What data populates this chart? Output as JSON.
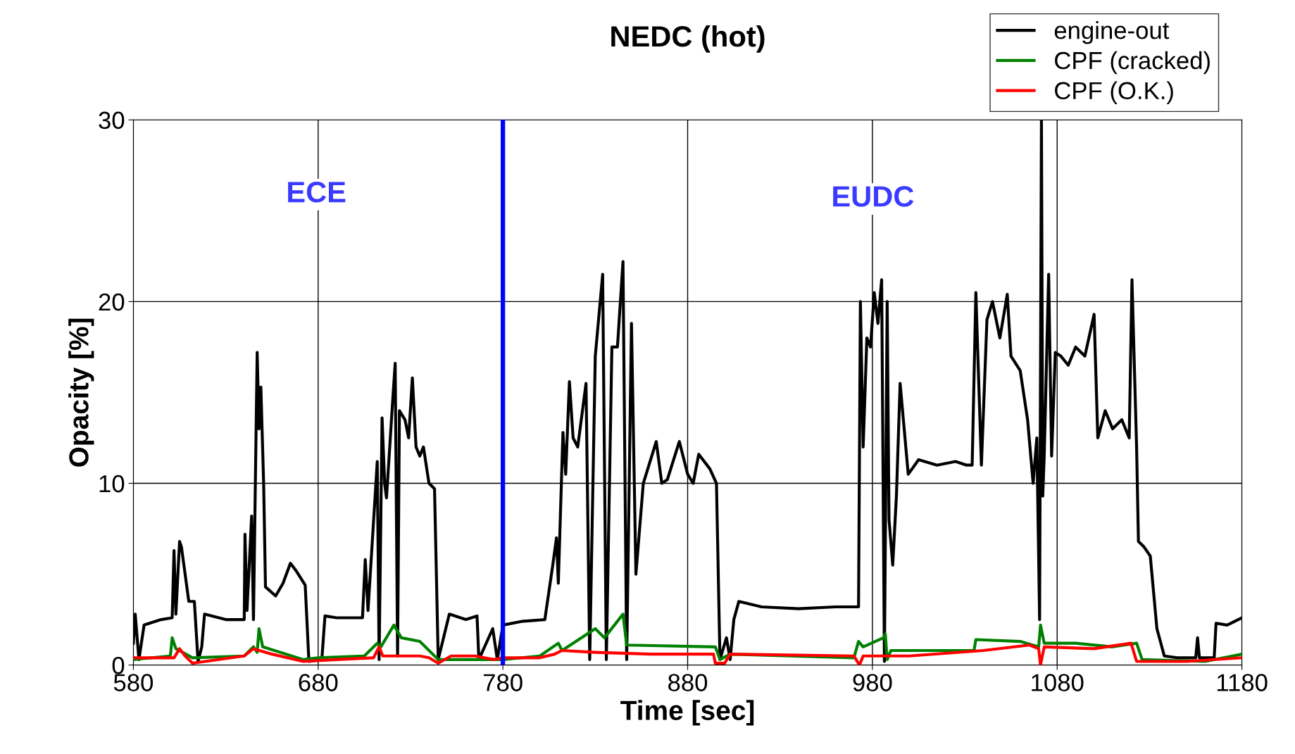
{
  "chart_data": {
    "type": "line",
    "title": "NEDC (hot)",
    "xlabel": "Time [sec]",
    "ylabel": "Opacity [%]",
    "xlim": [
      580,
      1180
    ],
    "xticks": [
      580,
      680,
      780,
      880,
      980,
      1080,
      1180
    ],
    "ylim": [
      0,
      30
    ],
    "yticks": [
      0,
      10,
      20,
      30
    ],
    "grid": true,
    "legend": "top right",
    "marker": "none",
    "line_style": "solid",
    "ref_lines": [
      {
        "axis": "x",
        "value": 780,
        "label": null,
        "color": "#0000ff"
      }
    ],
    "annotations": [
      "ECE",
      "EUDC"
    ],
    "series": [
      {
        "name": "engine-out",
        "color": "#000000",
        "x": [
          580,
          581,
          583,
          585.8,
          595,
          601,
          602,
          603,
          605,
          606,
          610,
          613,
          615,
          617,
          618.5,
          630,
          640,
          640.4,
          641.5,
          644,
          645,
          647,
          648,
          649,
          650.5,
          651.5,
          657,
          661,
          665,
          668,
          673,
          675,
          682,
          683.7,
          690,
          700,
          704,
          705.5,
          707,
          712,
          713,
          714.6,
          716,
          717,
          720,
          721.7,
          723,
          724,
          727,
          729,
          731,
          733,
          735,
          737,
          740,
          743,
          745,
          751,
          760,
          766,
          767,
          774.5,
          777,
          780,
          790,
          802.7,
          807,
          809,
          810,
          812.5,
          814,
          816,
          818,
          820.5,
          825,
          827,
          830,
          834,
          836,
          839,
          842,
          845,
          847,
          849.6,
          852,
          856,
          863,
          866,
          869,
          875.5,
          880,
          883,
          886,
          892,
          895.6,
          897.5,
          901,
          903,
          905,
          907.7,
          920,
          940,
          960,
          972.5,
          973.5,
          975,
          977,
          979,
          981,
          983,
          985,
          986.5,
          988,
          989,
          991,
          993,
          995,
          999.4,
          1005,
          1015,
          1025,
          1031,
          1034,
          1036,
          1039,
          1042,
          1045,
          1049,
          1053,
          1055,
          1060,
          1064,
          1067,
          1069,
          1070.5,
          1071.5,
          1072.2,
          1073,
          1075.4,
          1077,
          1079,
          1082,
          1086,
          1090,
          1095,
          1100,
          1102,
          1106,
          1110,
          1115,
          1119,
          1120.5,
          1123,
          1124,
          1127,
          1130.4,
          1134,
          1138,
          1145,
          1155,
          1156,
          1157,
          1165,
          1166,
          1172,
          1180
        ],
        "values": [
          1.2,
          2.8,
          0.3,
          2.2,
          2.5,
          2.6,
          6.3,
          2.8,
          6.8,
          6.5,
          3.5,
          3.5,
          0.2,
          1.0,
          2.8,
          2.5,
          2.5,
          7.2,
          3.0,
          8.2,
          2.5,
          17.2,
          13.0,
          15.3,
          10.0,
          4.3,
          3.8,
          4.5,
          5.6,
          5.2,
          4.4,
          0.2,
          0.3,
          2.7,
          2.6,
          2.6,
          2.6,
          5.8,
          3.0,
          11.2,
          0.3,
          13.6,
          10.0,
          9.2,
          14.0,
          16.6,
          0.5,
          14.0,
          13.5,
          12.5,
          15.8,
          12.0,
          11.5,
          12.0,
          10.0,
          9.7,
          0.3,
          2.8,
          2.5,
          2.7,
          0.3,
          2.0,
          0.3,
          2.2,
          2.4,
          2.5,
          5.5,
          7.0,
          4.5,
          12.8,
          10.5,
          15.6,
          12.5,
          12.0,
          15.5,
          0.3,
          17.0,
          21.5,
          0.3,
          17.5,
          17.5,
          22.2,
          0.3,
          18.8,
          5.0,
          10.0,
          12.3,
          10.0,
          10.2,
          12.3,
          10.5,
          10.0,
          11.6,
          10.8,
          10.0,
          0.3,
          1.5,
          0.3,
          2.5,
          3.5,
          3.2,
          3.1,
          3.2,
          3.2,
          20.0,
          12.0,
          18.0,
          17.5,
          20.5,
          18.8,
          21.2,
          0.2,
          20.0,
          8.0,
          5.5,
          9.3,
          15.5,
          10.5,
          11.3,
          11.0,
          11.2,
          11.0,
          11.0,
          20.5,
          11.0,
          19.0,
          20.0,
          18.0,
          20.4,
          17.0,
          16.2,
          13.5,
          10.0,
          12.5,
          2.5,
          30.0,
          9.3,
          11.5,
          21.5,
          11.5,
          17.2,
          17.0,
          16.5,
          17.5,
          17.0,
          19.3,
          12.5,
          14.0,
          13.0,
          13.5,
          12.5,
          21.2,
          12.0,
          6.8,
          6.5,
          6.0,
          2.0,
          0.5,
          0.4,
          0.4,
          1.5,
          0.4,
          0.4,
          2.3,
          2.2,
          2.6
        ]
      },
      {
        "name": "CPF (cracked)",
        "color": "#008000",
        "x": [
          580,
          600,
          601,
          603,
          612,
          640,
          645,
          647,
          648,
          650,
          672,
          680,
          705,
          712,
          714,
          721,
          725,
          735,
          745,
          780,
          800,
          810,
          812,
          830,
          835,
          845,
          847,
          895,
          897.5,
          903,
          970,
          972.5,
          975,
          986,
          987,
          988,
          990,
          1035,
          1036,
          1060,
          1070,
          1071,
          1073,
          1090,
          1110,
          1123,
          1126,
          1160,
          1180
        ],
        "values": [
          0.3,
          0.5,
          1.5,
          0.9,
          0.4,
          0.5,
          1.0,
          0.7,
          2.0,
          1.0,
          0.3,
          0.4,
          0.5,
          1.2,
          1.0,
          2.2,
          1.5,
          1.3,
          0.3,
          0.3,
          0.5,
          1.2,
          0.8,
          2.0,
          1.5,
          2.8,
          1.1,
          1.0,
          0.3,
          0.6,
          0.4,
          1.3,
          1.0,
          1.5,
          1.7,
          0.3,
          0.8,
          0.8,
          1.4,
          1.3,
          1.0,
          2.2,
          1.2,
          1.2,
          1.0,
          1.2,
          0.3,
          0.2,
          0.6
        ]
      },
      {
        "name": "CPF (O.K.)",
        "color": "#ff0000",
        "x": [
          580,
          602,
          605,
          608,
          612,
          640,
          645,
          655,
          672,
          690,
          710,
          713,
          715,
          735,
          740,
          745,
          752,
          765,
          775,
          780,
          800,
          808,
          812,
          830,
          860,
          894,
          895,
          900,
          903,
          970,
          973,
          975,
          1000,
          1040,
          1065,
          1070,
          1071,
          1073,
          1100,
          1120,
          1123,
          1150,
          1180
        ],
        "values": [
          0.4,
          0.4,
          0.9,
          0.5,
          0.1,
          0.5,
          0.9,
          0.6,
          0.2,
          0.3,
          0.4,
          1.0,
          0.5,
          0.5,
          0.4,
          0.1,
          0.5,
          0.5,
          0.3,
          0.4,
          0.4,
          0.6,
          0.8,
          0.7,
          0.6,
          0.6,
          0.1,
          0.1,
          0.6,
          0.5,
          0.0,
          0.5,
          0.5,
          0.8,
          1.1,
          0.9,
          0.0,
          1.0,
          0.9,
          1.2,
          0.2,
          0.2,
          0.4
        ]
      }
    ]
  }
}
